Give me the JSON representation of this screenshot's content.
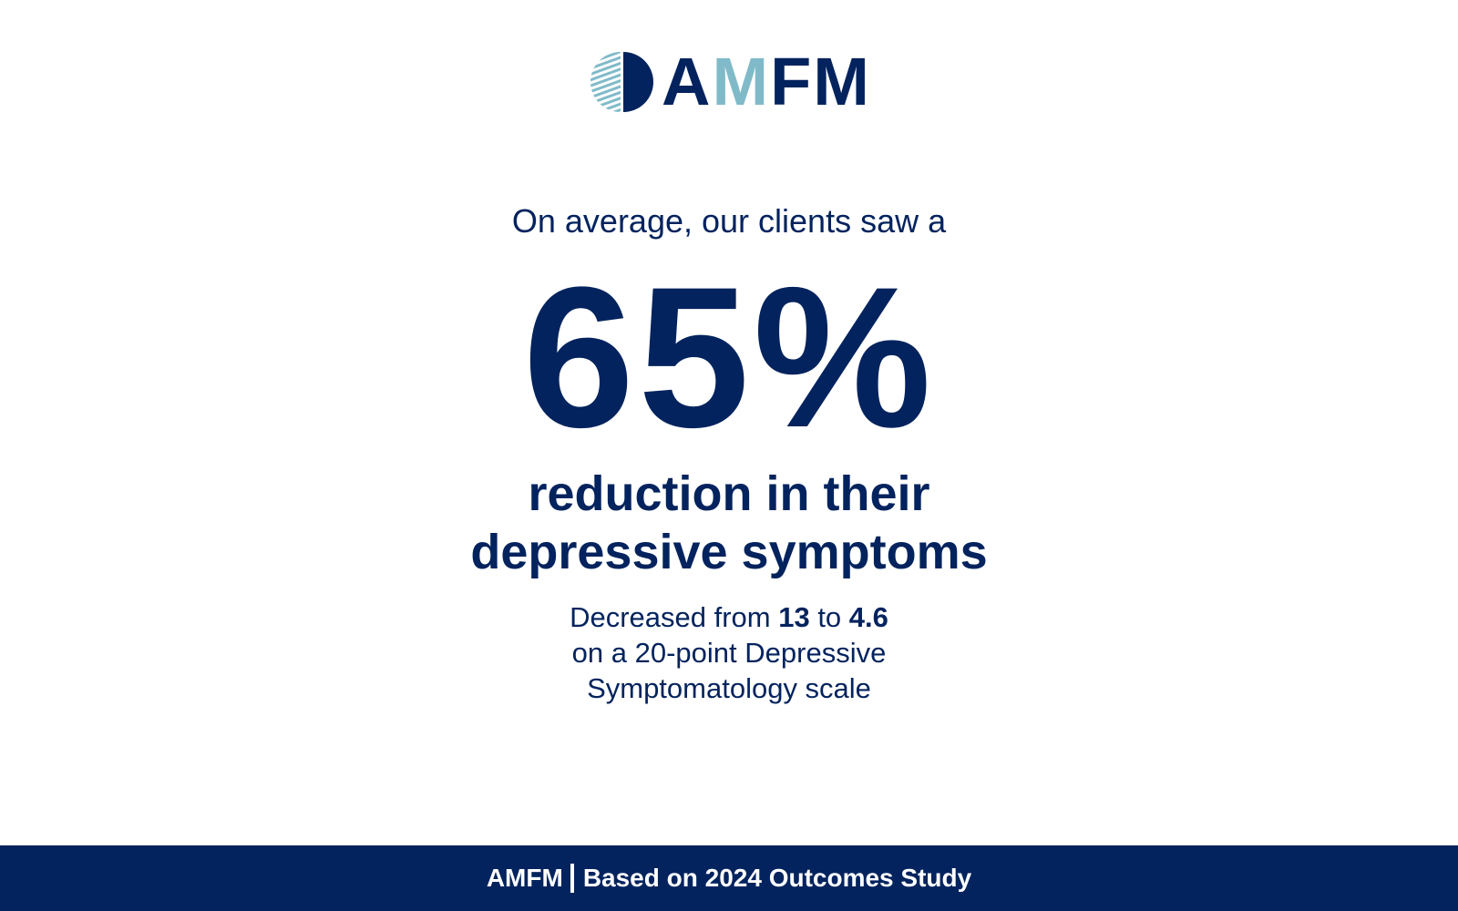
{
  "logo": {
    "prefix": "A",
    "accent": "M",
    "suffix": "FM",
    "colors": {
      "navy": "#03235e",
      "light_blue": "#80bac9"
    }
  },
  "headline": {
    "lead": "On average, our clients saw a",
    "stat": "65%",
    "subtitle_line1": "reduction in their",
    "subtitle_line2": "depressive symptoms"
  },
  "detail": {
    "prefix": "Decreased from ",
    "from": "13",
    "middle": " to ",
    "to": "4.6",
    "line2": "on a 20-point Depressive",
    "line3": "Symptomatology scale"
  },
  "footer": {
    "brand": "AMFM",
    "note": "Based on 2024 Outcomes Study"
  }
}
